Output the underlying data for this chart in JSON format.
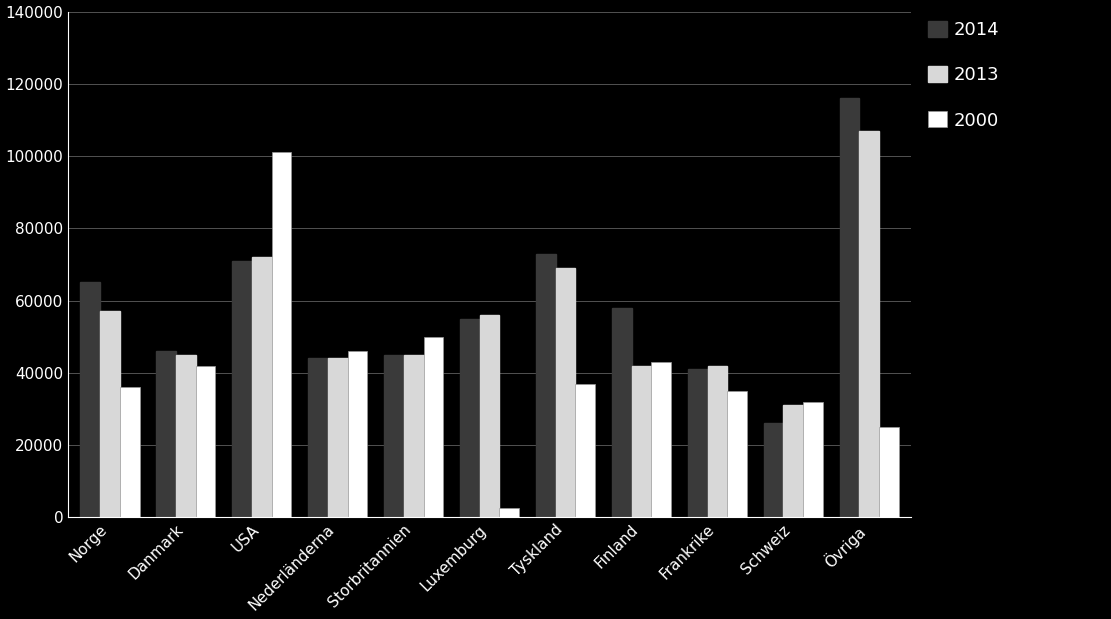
{
  "categories": [
    "Norge",
    "Danmark",
    "USA",
    "Nederländerna",
    "Storbritannien",
    "Luxemburg",
    "Tyskland",
    "Finland",
    "Frankrike",
    "Schweiz",
    "Övriga"
  ],
  "series": {
    "2014": [
      65000,
      46000,
      71000,
      44000,
      45000,
      55000,
      73000,
      58000,
      41000,
      26000,
      116000
    ],
    "2013": [
      57000,
      45000,
      72000,
      44000,
      45000,
      56000,
      69000,
      42000,
      42000,
      31000,
      107000
    ],
    "2000": [
      36000,
      42000,
      101000,
      46000,
      50000,
      2500,
      37000,
      43000,
      35000,
      32000,
      25000
    ]
  },
  "legend_labels": [
    "2014",
    "2013",
    "2000"
  ],
  "bar_colors": [
    "#3a3a3a",
    "#d8d8d8",
    "#ffffff"
  ],
  "ylim": [
    0,
    140000
  ],
  "yticks": [
    0,
    20000,
    40000,
    60000,
    80000,
    100000,
    120000,
    140000
  ],
  "background_color": "#000000",
  "text_color": "#ffffff",
  "grid_color": "#888888",
  "bar_width": 0.26,
  "tick_fontsize": 11,
  "legend_fontsize": 13
}
